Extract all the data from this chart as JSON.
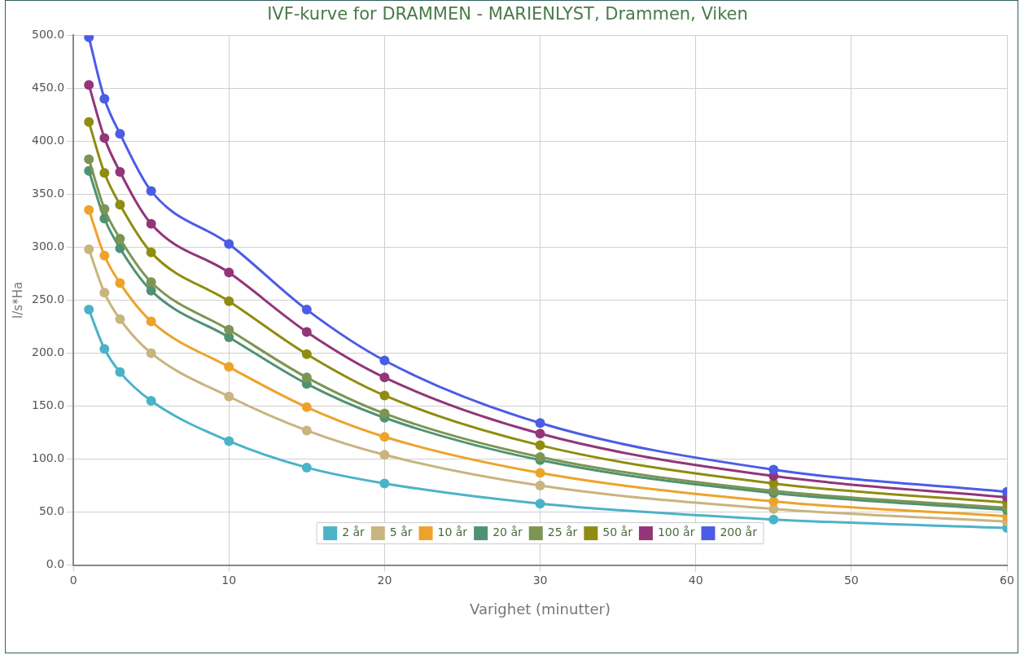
{
  "chart_data": {
    "type": "line",
    "title": "IVF-kurve for DRAMMEN - MARIENLYST, Drammen, Viken",
    "xlabel": "Varighet (minutter)",
    "ylabel": "l/s*Ha",
    "x": [
      1,
      2,
      3,
      5,
      10,
      15,
      20,
      30,
      45,
      60
    ],
    "series": [
      {
        "name": "2 år",
        "color": "#4bb3c8",
        "values": [
          241,
          204,
          182,
          155,
          117,
          92,
          77,
          58,
          43,
          35
        ]
      },
      {
        "name": "5 år",
        "color": "#c9b47e",
        "values": [
          298,
          257,
          232,
          200,
          159,
          127,
          104,
          75,
          53,
          41
        ]
      },
      {
        "name": "10 år",
        "color": "#eda32a",
        "values": [
          335,
          292,
          266,
          230,
          187,
          149,
          121,
          87,
          60,
          46
        ]
      },
      {
        "name": "20 år",
        "color": "#4f9273",
        "values": [
          372,
          327,
          299,
          259,
          215,
          171,
          139,
          99,
          68,
          52
        ]
      },
      {
        "name": "25 år",
        "color": "#7b9553",
        "values": [
          383,
          336,
          308,
          267,
          222,
          177,
          143,
          102,
          70,
          54
        ]
      },
      {
        "name": "50 år",
        "color": "#8f8c12",
        "values": [
          418,
          370,
          340,
          295,
          249,
          199,
          160,
          113,
          77,
          59
        ]
      },
      {
        "name": "100 år",
        "color": "#923579",
        "values": [
          453,
          403,
          371,
          322,
          276,
          220,
          177,
          124,
          84,
          64
        ]
      },
      {
        "name": "200 år",
        "color": "#4b5ce6",
        "values": [
          498,
          440,
          407,
          353,
          303,
          241,
          193,
          134,
          90,
          69
        ]
      }
    ],
    "xlim": [
      0,
      60
    ],
    "xticks": [
      0,
      10,
      20,
      30,
      40,
      50,
      60
    ],
    "ylim": [
      0,
      500
    ],
    "yticks": [
      {
        "value": 0,
        "label": "0.0"
      },
      {
        "value": 50,
        "label": "50.0"
      },
      {
        "value": 100,
        "label": "100.0"
      },
      {
        "value": 150,
        "label": "150.0"
      },
      {
        "value": 200,
        "label": "200.0"
      },
      {
        "value": 250,
        "label": "250.0"
      },
      {
        "value": 300,
        "label": "300.0"
      },
      {
        "value": 350,
        "label": "350.0"
      },
      {
        "value": 400,
        "label": "400.0"
      },
      {
        "value": 450,
        "label": "450.0"
      },
      {
        "value": 500,
        "label": "500.0"
      }
    ],
    "grid": true,
    "legend": "bottom",
    "marker": "circle",
    "line_style": "solid"
  }
}
